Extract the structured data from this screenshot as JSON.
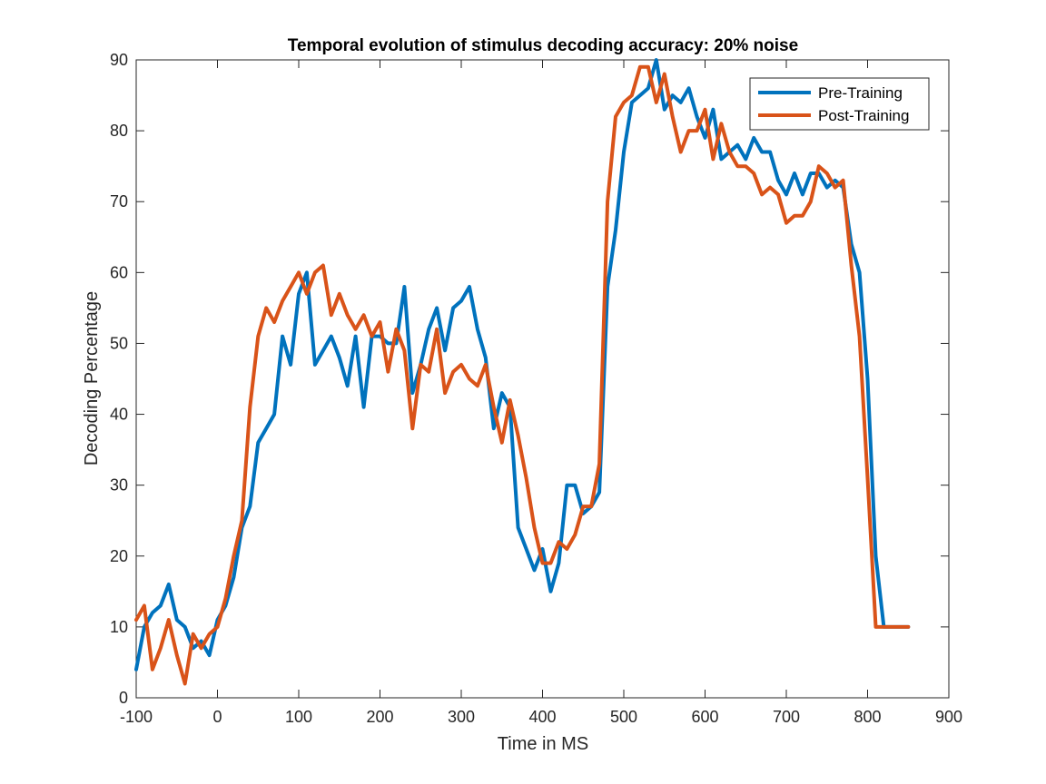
{
  "chart_data": {
    "type": "line",
    "title": "Temporal evolution of stimulus decoding accuracy: 20% noise",
    "xlabel": "Time in MS",
    "ylabel": "Decoding Percentage",
    "xlim": [
      -100,
      900
    ],
    "ylim": [
      0,
      90
    ],
    "xticks": [
      -100,
      0,
      100,
      200,
      300,
      400,
      500,
      600,
      700,
      800,
      900
    ],
    "yticks": [
      0,
      10,
      20,
      30,
      40,
      50,
      60,
      70,
      80,
      90
    ],
    "grid": false,
    "legend_position": "top-right",
    "x": [
      -100,
      -90,
      -80,
      -70,
      -60,
      -50,
      -40,
      -30,
      -20,
      -10,
      0,
      10,
      20,
      30,
      40,
      50,
      60,
      70,
      80,
      90,
      100,
      110,
      120,
      130,
      140,
      150,
      160,
      170,
      180,
      190,
      200,
      210,
      220,
      230,
      240,
      250,
      260,
      270,
      280,
      290,
      300,
      310,
      320,
      330,
      340,
      350,
      360,
      370,
      380,
      390,
      400,
      410,
      420,
      430,
      440,
      450,
      460,
      470,
      480,
      490,
      500,
      510,
      520,
      530,
      540,
      550,
      560,
      570,
      580,
      590,
      600,
      610,
      620,
      630,
      640,
      650,
      660,
      670,
      680,
      690,
      700,
      710,
      720,
      730,
      740,
      750,
      760,
      770,
      780,
      790,
      800,
      810,
      820,
      830,
      840,
      850
    ],
    "series": [
      {
        "name": "Pre-Training",
        "color": "#0072BD",
        "values": [
          4,
          10,
          12,
          13,
          16,
          11,
          10,
          7,
          8,
          6,
          11,
          13,
          17,
          24,
          27,
          36,
          38,
          40,
          51,
          47,
          57,
          60,
          47,
          49,
          51,
          48,
          44,
          51,
          41,
          51,
          51,
          50,
          50,
          58,
          43,
          47,
          52,
          55,
          49,
          55,
          56,
          58,
          52,
          48,
          38,
          43,
          41,
          24,
          21,
          18,
          21,
          15,
          19,
          30,
          30,
          26,
          27,
          29,
          58,
          66,
          77,
          84,
          85,
          86,
          90,
          83,
          85,
          84,
          86,
          82,
          79,
          83,
          76,
          77,
          78,
          76,
          79,
          77,
          77,
          73,
          71,
          74,
          71,
          74,
          74,
          72,
          73,
          72,
          64,
          60,
          45,
          20,
          10,
          10,
          10,
          10
        ]
      },
      {
        "name": "Post-Training",
        "color": "#D95319",
        "values": [
          11,
          13,
          4,
          7,
          11,
          6,
          2,
          9,
          7,
          9,
          10,
          14,
          20,
          25,
          41,
          51,
          55,
          53,
          56,
          58,
          60,
          57,
          60,
          61,
          54,
          57,
          54,
          52,
          54,
          51,
          53,
          46,
          52,
          49,
          38,
          47,
          46,
          52,
          43,
          46,
          47,
          45,
          44,
          47,
          41,
          36,
          42,
          37,
          31,
          24,
          19,
          19,
          22,
          21,
          23,
          27,
          27,
          33,
          70,
          82,
          84,
          85,
          89,
          89,
          84,
          88,
          82,
          77,
          80,
          80,
          83,
          76,
          81,
          77,
          75,
          75,
          74,
          71,
          72,
          71,
          67,
          68,
          68,
          70,
          75,
          74,
          72,
          73,
          61,
          51,
          31,
          10,
          10,
          10,
          10,
          10
        ]
      }
    ]
  }
}
